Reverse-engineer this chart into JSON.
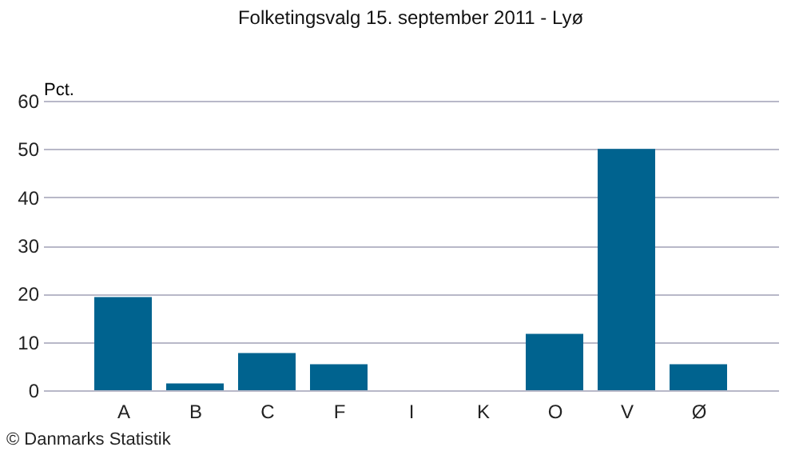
{
  "chart_data": {
    "type": "bar",
    "title": "Folketingsvalg 15. september 2011 - Lyø",
    "ylabel": "Pct.",
    "categories": [
      "A",
      "B",
      "C",
      "F",
      "I",
      "K",
      "O",
      "V",
      "Ø"
    ],
    "values": [
      19.3,
      1.4,
      7.7,
      5.4,
      0,
      0,
      11.7,
      50.0,
      5.4
    ],
    "color": "#00638f",
    "ylim": [
      0,
      60
    ],
    "yticks": [
      0,
      10,
      20,
      30,
      40,
      50,
      60
    ],
    "grid": "y",
    "annotations": [
      "© Danmarks Statistik"
    ]
  }
}
